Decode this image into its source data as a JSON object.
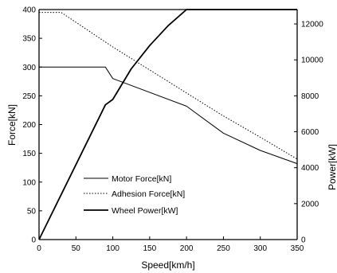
{
  "chart_data": {
    "type": "line",
    "xlabel": "Speed[km/h]",
    "ylabel_left": "Force[kN]",
    "ylabel_right": "Power[kW]",
    "xlim": [
      0,
      350
    ],
    "ylim_left": [
      0,
      400
    ],
    "ylim_right": [
      0,
      12800
    ],
    "xticks": [
      0,
      50,
      100,
      150,
      200,
      250,
      300,
      350
    ],
    "yticks_left": [
      0,
      50,
      100,
      150,
      200,
      250,
      300,
      350,
      400
    ],
    "yticks_right": [
      0,
      2000,
      4000,
      6000,
      8000,
      10000,
      12000
    ],
    "grid": false,
    "legend_position": "center",
    "series": [
      {
        "name": "Motor Force[kN]",
        "axis": "left",
        "style": "solid",
        "color": "#000000",
        "x": [
          0,
          90,
          100,
          200,
          250,
          300,
          350
        ],
        "y": [
          300,
          300,
          280,
          232,
          185,
          155,
          132
        ]
      },
      {
        "name": "Adhesion Force[kN]",
        "axis": "left",
        "style": "dotted",
        "color": "#000000",
        "x": [
          0,
          30,
          100,
          150,
          200,
          250,
          300,
          350
        ],
        "y": [
          395,
          395,
          335,
          295,
          255,
          215,
          178,
          140
        ]
      },
      {
        "name": "Wheel Power[kW]",
        "axis": "right",
        "style": "solid-bold",
        "color": "#000000",
        "x": [
          0,
          90,
          100,
          125,
          150,
          175,
          200,
          250,
          300,
          350
        ],
        "y": [
          0,
          7500,
          7800,
          9500,
          10800,
          11900,
          12800,
          12800,
          12800,
          12800
        ]
      }
    ]
  }
}
